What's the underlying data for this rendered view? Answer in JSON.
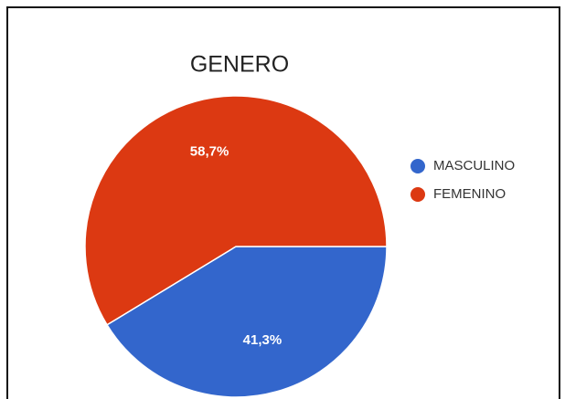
{
  "chart_data": {
    "type": "pie",
    "title": "GENERO",
    "categories": [
      "MASCULINO",
      "FEMENINO"
    ],
    "values": [
      41.3,
      58.7
    ],
    "value_labels": [
      "41,3%",
      "58,7%"
    ],
    "colors": [
      "#3366cc",
      "#dc3912"
    ],
    "legend": "right"
  }
}
